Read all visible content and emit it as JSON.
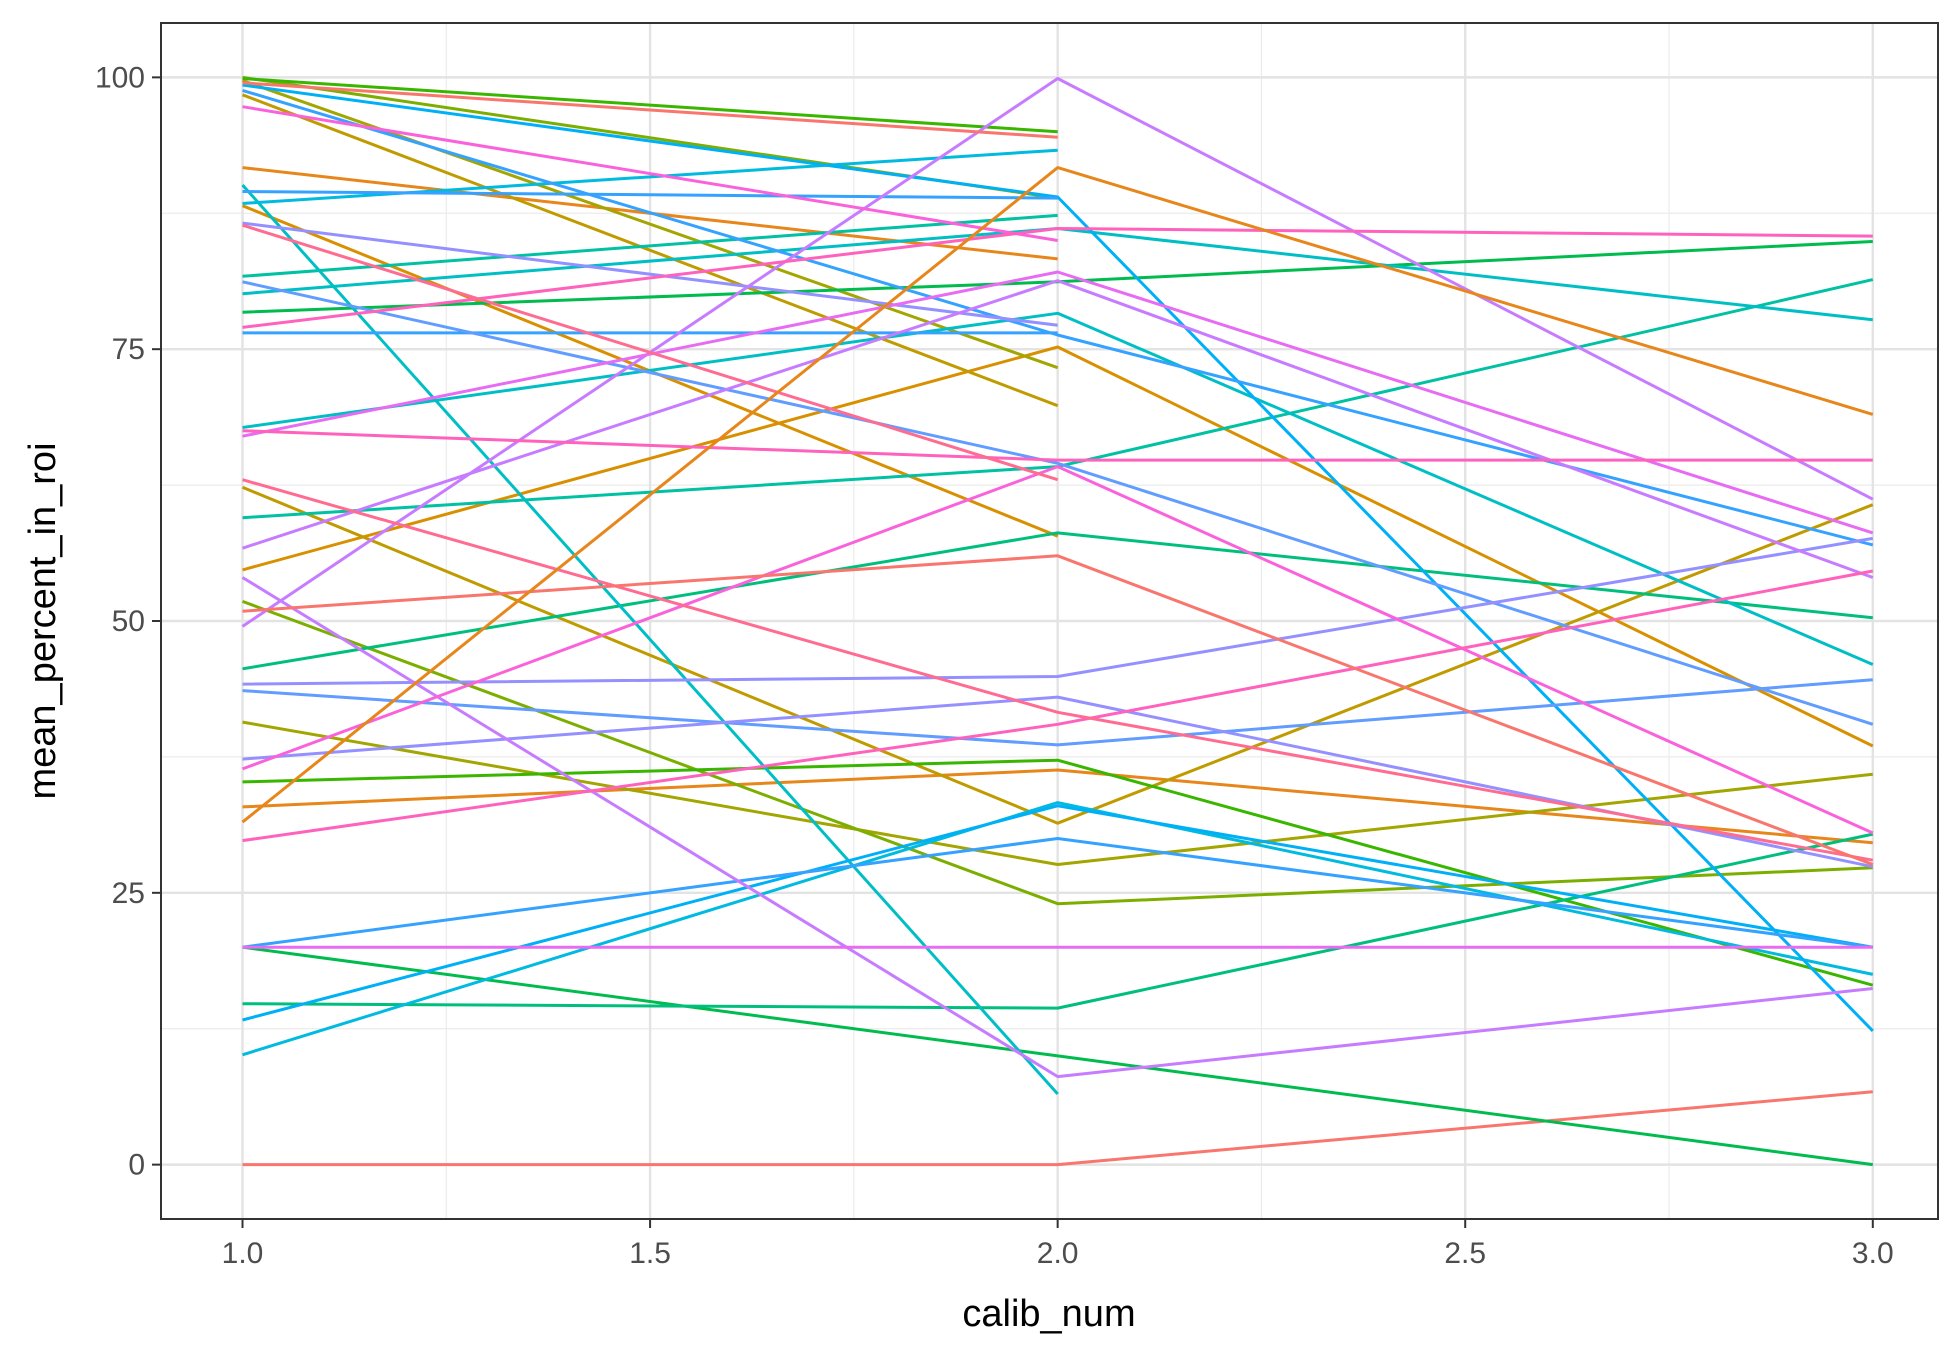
{
  "chart_data": {
    "type": "line",
    "xlabel": "calib_num",
    "ylabel": "mean_percent_in_roi",
    "xlim": [
      0.9,
      3.08
    ],
    "ylim": [
      -5,
      105
    ],
    "x_ticks": [
      "1.0",
      "1.5",
      "2.0",
      "2.5",
      "3.0"
    ],
    "y_ticks": [
      "0",
      "25",
      "50",
      "75",
      "100"
    ],
    "x": [
      1,
      2,
      3
    ],
    "grid": true,
    "legend": "none",
    "series": [
      {
        "color": "#F8766D",
        "values": [
          0.0,
          0.0,
          6.7
        ]
      },
      {
        "color": "#E7861B",
        "values": [
          32.9,
          36.3,
          29.6
        ]
      },
      {
        "color": "#E7861B",
        "values": [
          91.7,
          83.3,
          null
        ]
      },
      {
        "color": "#D89000",
        "values": [
          54.7,
          75.2,
          38.5
        ]
      },
      {
        "color": "#D89000",
        "values": [
          88.2,
          57.8,
          null
        ]
      },
      {
        "color": "#C09B00",
        "values": [
          98.4,
          69.8,
          null
        ]
      },
      {
        "color": "#C09B00",
        "values": [
          62.3,
          31.4,
          60.7
        ]
      },
      {
        "color": "#A3A500",
        "values": [
          40.7,
          27.6,
          35.9
        ]
      },
      {
        "color": "#A3A500",
        "values": [
          99.7,
          73.3,
          null
        ]
      },
      {
        "color": "#7CAE00",
        "values": [
          100.0,
          88.9,
          null
        ]
      },
      {
        "color": "#7CAE00",
        "values": [
          51.8,
          24.0,
          27.3
        ]
      },
      {
        "color": "#39B600",
        "values": [
          99.9,
          95.0,
          null
        ]
      },
      {
        "color": "#39B600",
        "values": [
          35.2,
          37.2,
          16.5
        ]
      },
      {
        "color": "#00BB4E",
        "values": [
          78.4,
          81.2,
          84.9
        ]
      },
      {
        "color": "#00BB4E",
        "values": [
          20.0,
          10.0,
          0.0
        ]
      },
      {
        "color": "#00BF7D",
        "values": [
          14.8,
          14.4,
          30.4
        ]
      },
      {
        "color": "#00BF7D",
        "values": [
          45.6,
          58.1,
          50.3
        ]
      },
      {
        "color": "#00C1A3",
        "values": [
          81.7,
          87.3,
          null
        ]
      },
      {
        "color": "#00C1A3",
        "values": [
          59.5,
          64.2,
          81.4
        ]
      },
      {
        "color": "#00BFC4",
        "values": [
          67.8,
          78.3,
          46.0
        ]
      },
      {
        "color": "#00BFC4",
        "values": [
          90.1,
          6.5,
          null
        ]
      },
      {
        "color": "#00BFC4",
        "values": [
          80.1,
          86.1,
          77.7
        ]
      },
      {
        "color": "#00BAE0",
        "values": [
          10.1,
          33.3,
          17.5
        ]
      },
      {
        "color": "#00BAE0",
        "values": [
          88.4,
          93.3,
          null
        ]
      },
      {
        "color": "#00B0F6",
        "values": [
          13.3,
          33.0,
          20.0
        ]
      },
      {
        "color": "#00B0F6",
        "values": [
          99.3,
          89.0,
          12.3
        ]
      },
      {
        "color": "#35A2FF",
        "values": [
          20.0,
          30.0,
          20.0
        ]
      },
      {
        "color": "#35A2FF",
        "values": [
          89.5,
          88.9,
          null
        ]
      },
      {
        "color": "#35A2FF",
        "values": [
          76.5,
          76.5,
          null
        ]
      },
      {
        "color": "#35A2FF",
        "values": [
          98.8,
          76.3,
          57.0
        ]
      },
      {
        "color": "#619CFF",
        "values": [
          81.2,
          64.5,
          40.5
        ]
      },
      {
        "color": "#619CFF",
        "values": [
          43.6,
          38.6,
          44.6
        ]
      },
      {
        "color": "#9590FF",
        "values": [
          86.6,
          77.2,
          null
        ]
      },
      {
        "color": "#9590FF",
        "values": [
          44.2,
          44.9,
          57.6
        ]
      },
      {
        "color": "#9590FF",
        "values": [
          37.3,
          43.0,
          27.4
        ]
      },
      {
        "color": "#C77CFF",
        "values": [
          56.7,
          81.3,
          54.0
        ]
      },
      {
        "color": "#C77CFF",
        "values": [
          49.5,
          99.9,
          61.2
        ]
      },
      {
        "color": "#C77CFF",
        "values": [
          54.0,
          8.1,
          16.2
        ]
      },
      {
        "color": "#E76BF3",
        "values": [
          67.0,
          82.1,
          58.1
        ]
      },
      {
        "color": "#E76BF3",
        "values": [
          20.0,
          20.0,
          20.0
        ]
      },
      {
        "color": "#FA62DB",
        "values": [
          97.3,
          85.0,
          null
        ]
      },
      {
        "color": "#FA62DB",
        "values": [
          36.4,
          64.2,
          30.5
        ]
      },
      {
        "color": "#FF62BC",
        "values": [
          77.0,
          86.1,
          85.4
        ]
      },
      {
        "color": "#FF62BC",
        "values": [
          29.8,
          40.5,
          54.6
        ]
      },
      {
        "color": "#FF62BC",
        "values": [
          67.5,
          64.8,
          64.8
        ]
      },
      {
        "color": "#FF6C91",
        "values": [
          86.4,
          63.0,
          null
        ]
      },
      {
        "color": "#FF6C91",
        "values": [
          63.0,
          41.6,
          28.0
        ]
      },
      {
        "color": "#F8766D",
        "values": [
          99.5,
          94.5,
          null
        ]
      },
      {
        "color": "#F8766D",
        "values": [
          50.9,
          56.0,
          27.6
        ]
      },
      {
        "color": "#E7861B",
        "values": [
          31.5,
          91.7,
          69.0
        ]
      }
    ]
  }
}
